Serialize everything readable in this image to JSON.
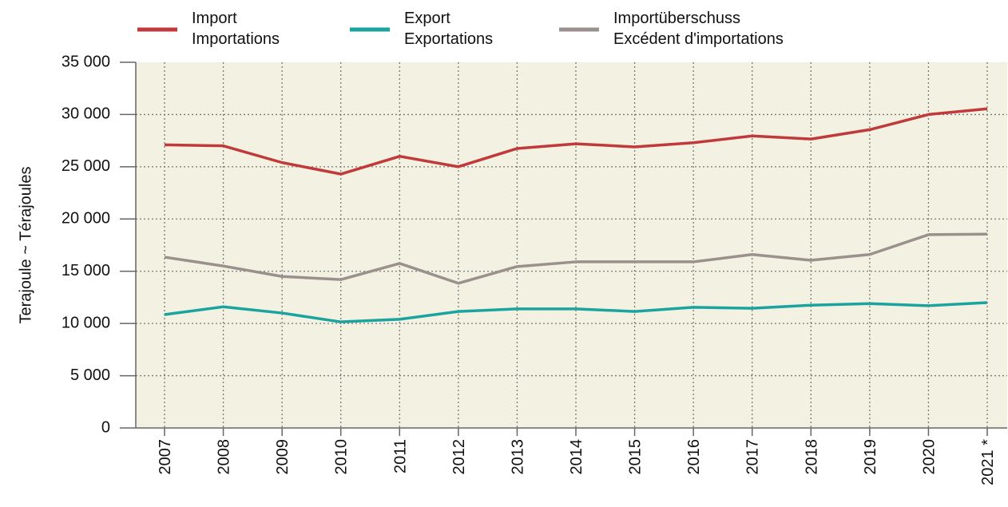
{
  "chart_data": {
    "type": "line",
    "y_label": "Terajoule   ~   Térajoules",
    "categories": [
      "2007",
      "2008",
      "2009",
      "2010",
      "2011",
      "2012",
      "2013",
      "2014",
      "2015",
      "2016",
      "2017",
      "2018",
      "2019",
      "2020",
      "2021 *"
    ],
    "series": [
      {
        "name": [
          "Import",
          "Importations"
        ],
        "color": "#c0393b",
        "values": [
          27100,
          27000,
          25400,
          24300,
          26000,
          25000,
          26750,
          27200,
          26900,
          27300,
          27950,
          27650,
          28550,
          30000,
          30550
        ]
      },
      {
        "name": [
          "Export",
          "Exportations"
        ],
        "color": "#1ba39f",
        "values": [
          10850,
          11600,
          11000,
          10150,
          10400,
          11150,
          11400,
          11400,
          11150,
          11550,
          11450,
          11750,
          11900,
          11700,
          12000
        ]
      },
      {
        "name": [
          "Importüberschuss",
          "Excédent d'importations"
        ],
        "color": "#9a908d",
        "values": [
          16350,
          15500,
          14500,
          14200,
          15750,
          13850,
          15450,
          15900,
          15900,
          15900,
          16600,
          16050,
          16600,
          18500,
          18550
        ]
      }
    ],
    "ylim": [
      0,
      35000
    ],
    "yticks": [
      0,
      {
        "value": 5000,
        "label": "5 000"
      },
      {
        "value": 10000,
        "label": "10 000"
      },
      {
        "value": 15000,
        "label": "15 000"
      },
      {
        "value": 20000,
        "label": "20 000"
      },
      {
        "value": 25000,
        "label": "25 000"
      },
      {
        "value": 30000,
        "label": "30 000"
      },
      {
        "value": 35000,
        "label": "35 000"
      }
    ],
    "grid": true,
    "legend": "top"
  }
}
